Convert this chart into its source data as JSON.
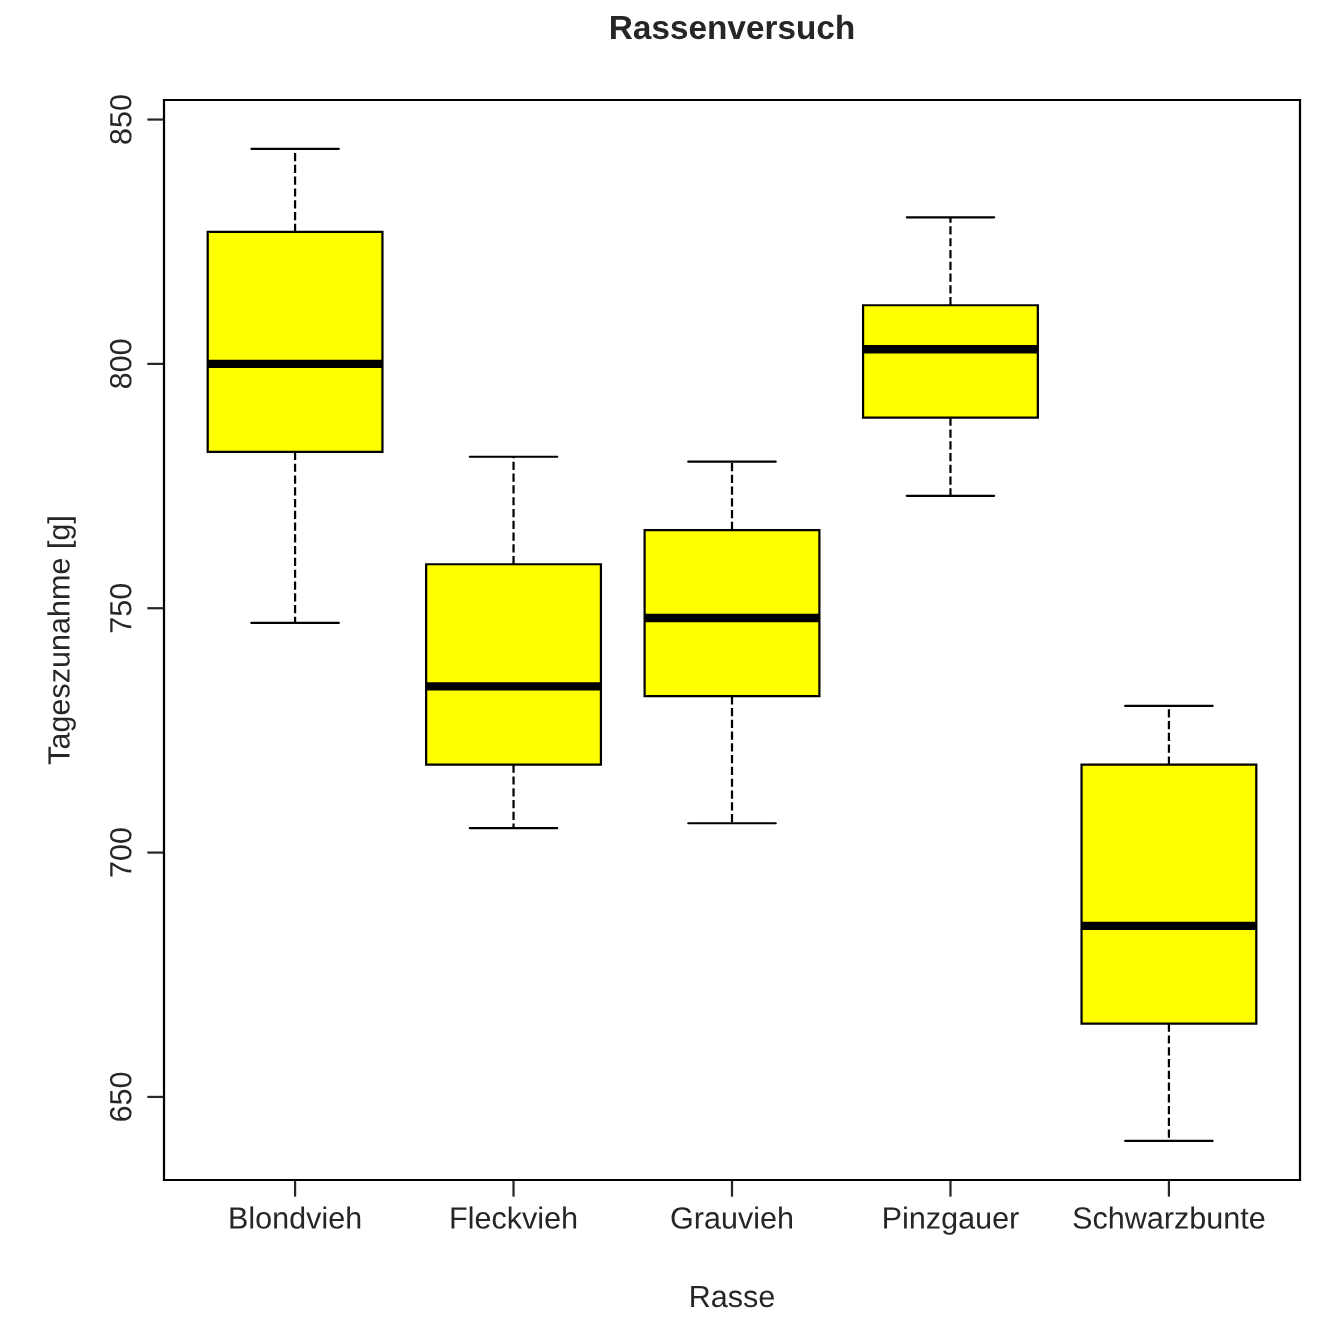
{
  "chart_data": {
    "type": "box",
    "title": "Rassenversuch",
    "xlabel": "Rasse",
    "ylabel": "Tageszunahme [g]",
    "categories": [
      "Blondvieh",
      "Fleckvieh",
      "Grauvieh",
      "Pinzgauer",
      "Schwarzbunte"
    ],
    "boxes": [
      {
        "low": 747,
        "q1": 782,
        "median": 800,
        "q3": 827,
        "high": 844
      },
      {
        "low": 705,
        "q1": 718,
        "median": 734,
        "q3": 759,
        "high": 781
      },
      {
        "low": 706,
        "q1": 732,
        "median": 748,
        "q3": 766,
        "high": 780
      },
      {
        "low": 773,
        "q1": 789,
        "median": 803,
        "q3": 812,
        "high": 830
      },
      {
        "low": 641,
        "q1": 665,
        "median": 685,
        "q3": 718,
        "high": 730
      }
    ],
    "color": "#ffff00",
    "ylim": [
      633,
      854
    ],
    "yticks": [
      650,
      700,
      750,
      800,
      850
    ],
    "grid": false
  }
}
